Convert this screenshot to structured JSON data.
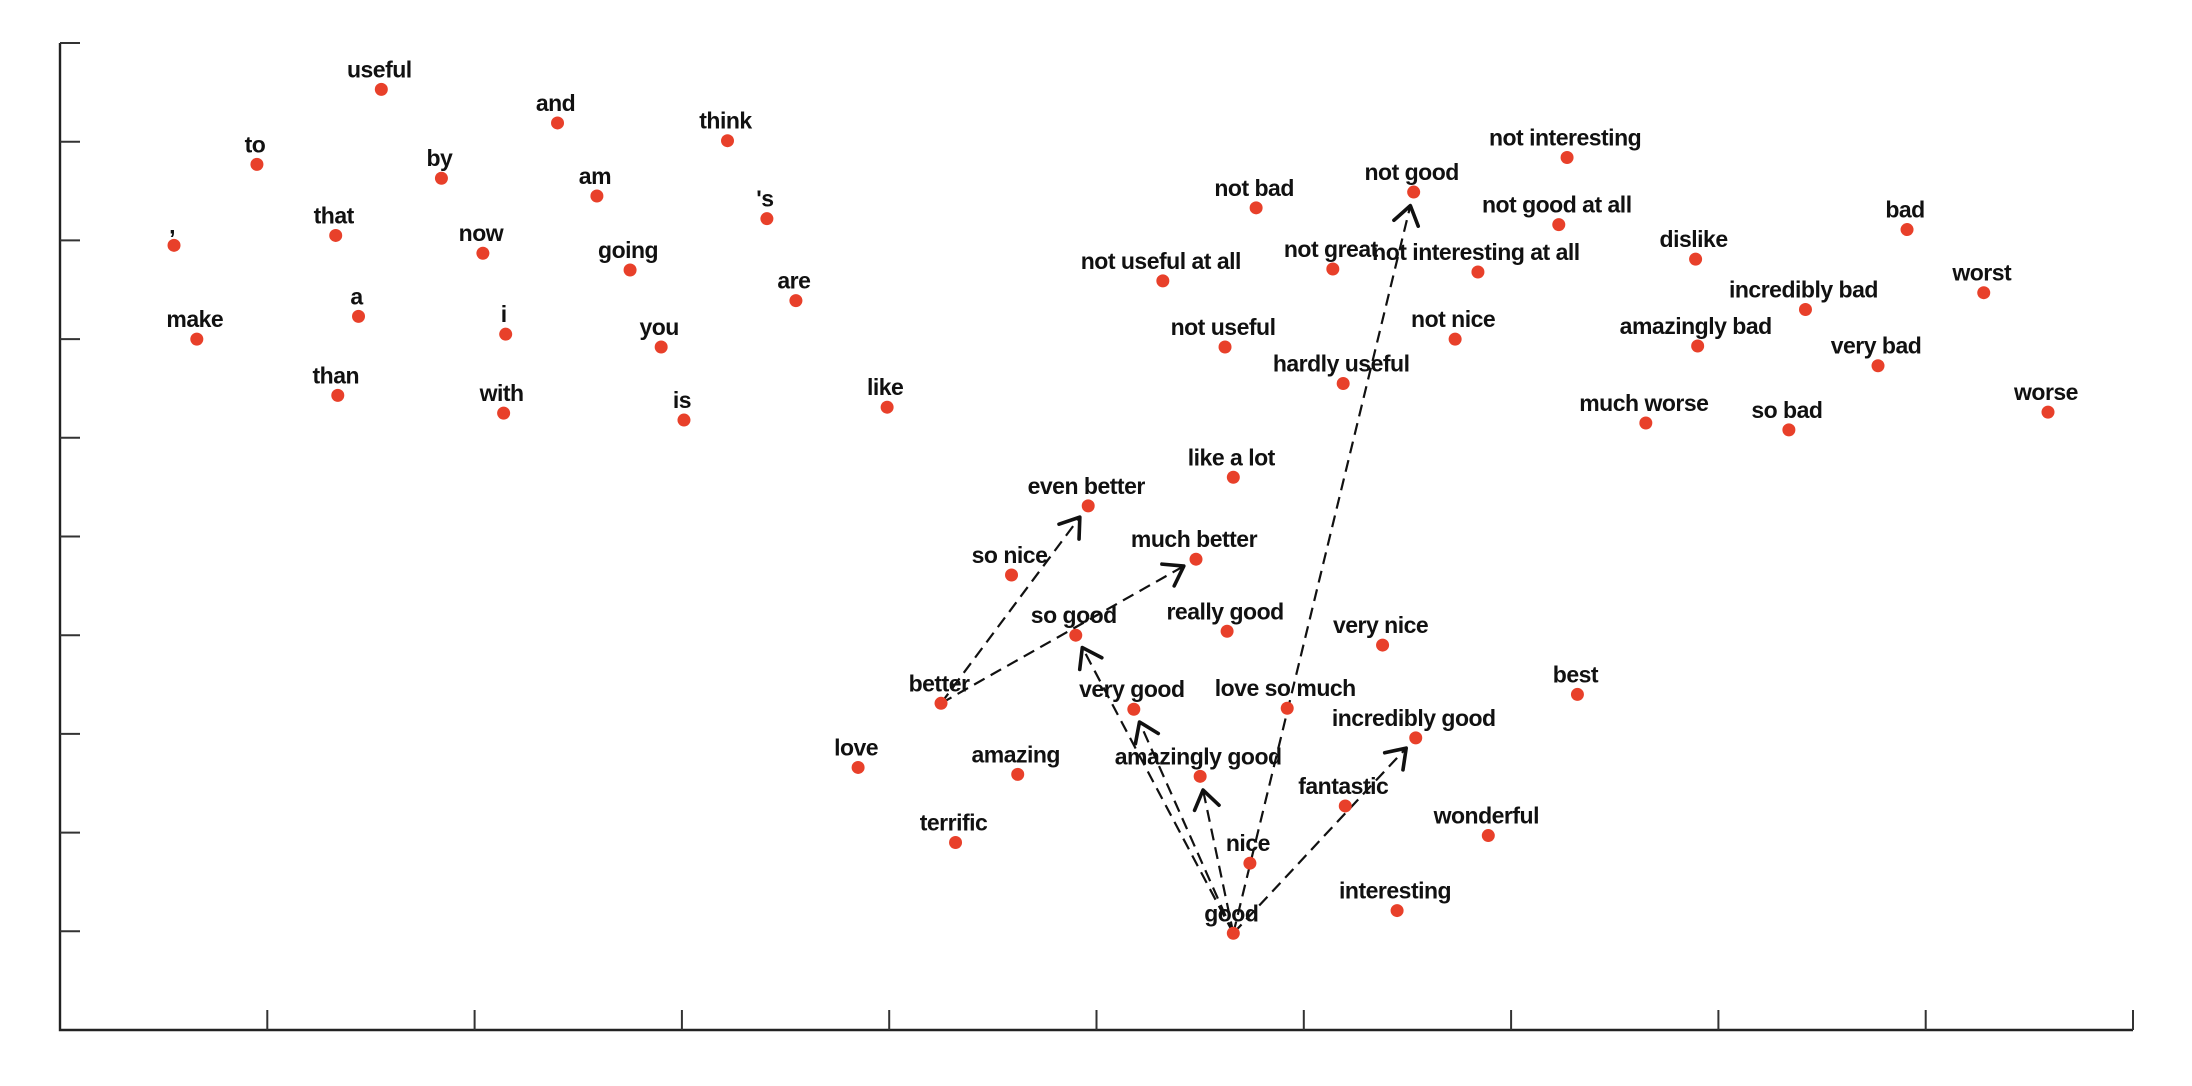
{
  "chart_data": {
    "type": "scatter",
    "title": "",
    "xlabel": "",
    "ylabel": "",
    "xlim": [
      0,
      1
    ],
    "ylim": [
      0,
      1
    ],
    "x_ticks": [
      0.1,
      0.2,
      0.3,
      0.4,
      0.5,
      0.6,
      0.7,
      0.8,
      0.9,
      1.0
    ],
    "y_ticks": [
      0.1,
      0.2,
      0.3,
      0.4,
      0.5,
      0.6,
      0.7,
      0.8,
      0.9,
      1.0
    ],
    "grid": false,
    "legend": "none",
    "marker_color": "#e8402a",
    "points": [
      {
        "label": "useful",
        "x": 0.155,
        "y": 0.953
      },
      {
        "label": "and",
        "x": 0.24,
        "y": 0.919
      },
      {
        "label": "think",
        "x": 0.322,
        "y": 0.901
      },
      {
        "label": "to",
        "x": 0.095,
        "y": 0.877
      },
      {
        "label": "by",
        "x": 0.184,
        "y": 0.863
      },
      {
        "label": "am",
        "x": 0.259,
        "y": 0.845
      },
      {
        "label": "'s",
        "x": 0.341,
        "y": 0.822
      },
      {
        "label": "that",
        "x": 0.133,
        "y": 0.805
      },
      {
        "label": "now",
        "x": 0.204,
        "y": 0.787
      },
      {
        "label": "going",
        "x": 0.275,
        "y": 0.77
      },
      {
        "label": ",",
        "x": 0.055,
        "y": 0.795
      },
      {
        "label": "are",
        "x": 0.355,
        "y": 0.739
      },
      {
        "label": "a",
        "x": 0.144,
        "y": 0.723
      },
      {
        "label": "make",
        "x": 0.066,
        "y": 0.7
      },
      {
        "label": "i",
        "x": 0.215,
        "y": 0.705
      },
      {
        "label": "you",
        "x": 0.29,
        "y": 0.692
      },
      {
        "label": "than",
        "x": 0.134,
        "y": 0.643
      },
      {
        "label": "with",
        "x": 0.214,
        "y": 0.625
      },
      {
        "label": "is",
        "x": 0.301,
        "y": 0.618
      },
      {
        "label": "like",
        "x": 0.399,
        "y": 0.631
      },
      {
        "label": "not interesting",
        "x": 0.727,
        "y": 0.884
      },
      {
        "label": "not good",
        "x": 0.653,
        "y": 0.849
      },
      {
        "label": "not bad",
        "x": 0.577,
        "y": 0.833
      },
      {
        "label": "not good at all",
        "x": 0.723,
        "y": 0.816
      },
      {
        "label": "bad",
        "x": 0.891,
        "y": 0.811
      },
      {
        "label": "dislike",
        "x": 0.789,
        "y": 0.781
      },
      {
        "label": "not great",
        "x": 0.614,
        "y": 0.771
      },
      {
        "label": "not interesting at all",
        "x": 0.684,
        "y": 0.768
      },
      {
        "label": "not useful at all",
        "x": 0.532,
        "y": 0.759
      },
      {
        "label": "worst",
        "x": 0.928,
        "y": 0.747
      },
      {
        "label": "incredibly bad",
        "x": 0.842,
        "y": 0.73
      },
      {
        "label": "not nice",
        "x": 0.673,
        "y": 0.7
      },
      {
        "label": "not useful",
        "x": 0.562,
        "y": 0.692
      },
      {
        "label": "amazingly bad",
        "x": 0.79,
        "y": 0.693
      },
      {
        "label": "very bad",
        "x": 0.877,
        "y": 0.673
      },
      {
        "label": "hardly useful",
        "x": 0.619,
        "y": 0.655
      },
      {
        "label": "much worse",
        "x": 0.765,
        "y": 0.615
      },
      {
        "label": "so bad",
        "x": 0.834,
        "y": 0.608
      },
      {
        "label": "worse",
        "x": 0.959,
        "y": 0.626
      },
      {
        "label": "like a lot",
        "x": 0.566,
        "y": 0.56
      },
      {
        "label": "even better",
        "x": 0.496,
        "y": 0.531
      },
      {
        "label": "much better",
        "x": 0.548,
        "y": 0.477
      },
      {
        "label": "so nice",
        "x": 0.459,
        "y": 0.461
      },
      {
        "label": "so good",
        "x": 0.49,
        "y": 0.4
      },
      {
        "label": "really good",
        "x": 0.563,
        "y": 0.404
      },
      {
        "label": "very nice",
        "x": 0.638,
        "y": 0.39
      },
      {
        "label": "better",
        "x": 0.425,
        "y": 0.331
      },
      {
        "label": "very good",
        "x": 0.518,
        "y": 0.325
      },
      {
        "label": "love so much",
        "x": 0.592,
        "y": 0.326
      },
      {
        "label": "best",
        "x": 0.732,
        "y": 0.34
      },
      {
        "label": "incredibly good",
        "x": 0.654,
        "y": 0.296
      },
      {
        "label": "love",
        "x": 0.385,
        "y": 0.266
      },
      {
        "label": "amazing",
        "x": 0.462,
        "y": 0.259
      },
      {
        "label": "amazingly good",
        "x": 0.55,
        "y": 0.257
      },
      {
        "label": "fantastic",
        "x": 0.62,
        "y": 0.227
      },
      {
        "label": "terrific",
        "x": 0.432,
        "y": 0.19
      },
      {
        "label": "wonderful",
        "x": 0.689,
        "y": 0.197
      },
      {
        "label": "nice",
        "x": 0.574,
        "y": 0.169
      },
      {
        "label": "interesting",
        "x": 0.645,
        "y": 0.121
      },
      {
        "label": "good",
        "x": 0.566,
        "y": 0.098
      }
    ],
    "arrows": [
      {
        "from": "good",
        "to": "not good"
      },
      {
        "from": "good",
        "to": "so good"
      },
      {
        "from": "good",
        "to": "very good"
      },
      {
        "from": "good",
        "to": "amazingly good"
      },
      {
        "from": "good",
        "to": "incredibly good"
      },
      {
        "from": "better",
        "to": "even better"
      },
      {
        "from": "better",
        "to": "much better"
      }
    ]
  }
}
